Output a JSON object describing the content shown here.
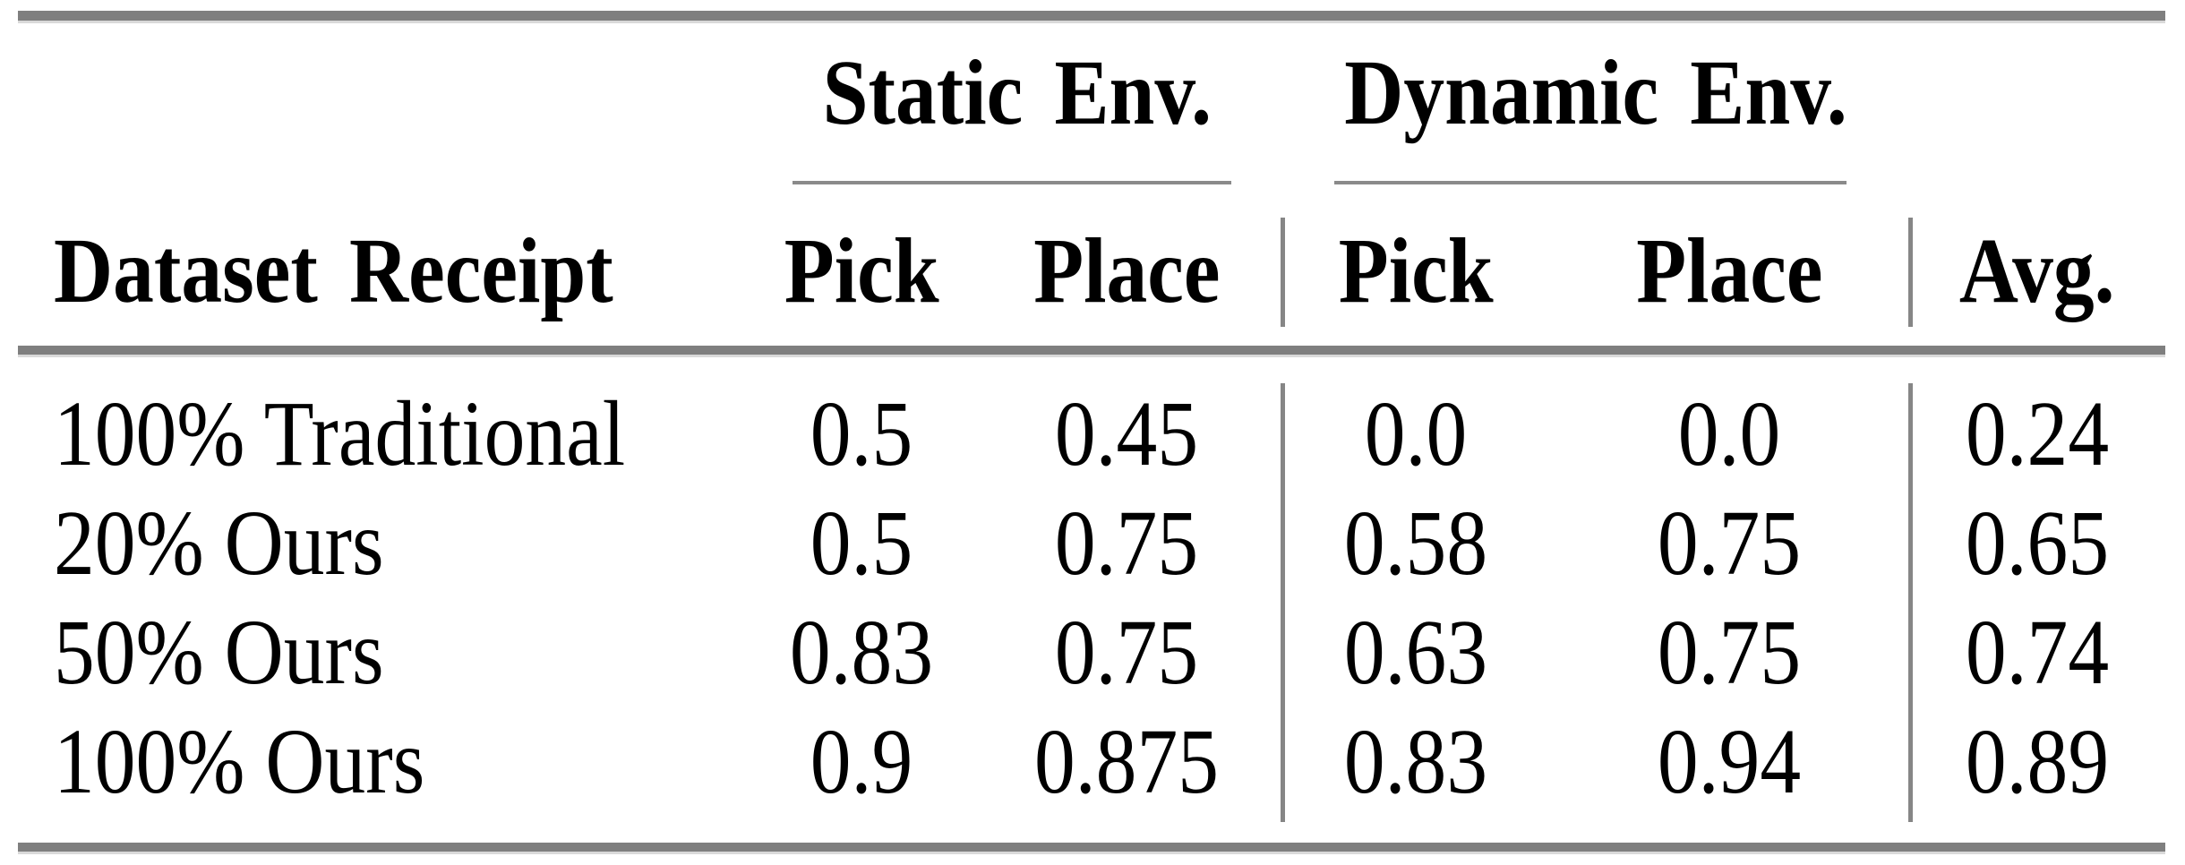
{
  "table": {
    "group_headers": [
      "Static Env.",
      "Dynamic Env."
    ],
    "columns": [
      "Dataset Receipt",
      "Pick",
      "Place",
      "Pick",
      "Place",
      "Avg."
    ],
    "rows": [
      {
        "label": "100% Traditional",
        "values": [
          "0.5",
          "0.45",
          "0.0",
          "0.0",
          "0.24"
        ]
      },
      {
        "label": "20% Ours",
        "values": [
          "0.5",
          "0.75",
          "0.58",
          "0.75",
          "0.65"
        ]
      },
      {
        "label": "50% Ours",
        "values": [
          "0.83",
          "0.75",
          "0.63",
          "0.75",
          "0.74"
        ]
      },
      {
        "label": "100% Ours",
        "values": [
          "0.9",
          "0.875",
          "0.83",
          "0.94",
          "0.89"
        ]
      }
    ],
    "colors": {
      "rule_gray": "#7f7f7f",
      "separator_gray": "#868686",
      "text": "#000000"
    }
  }
}
